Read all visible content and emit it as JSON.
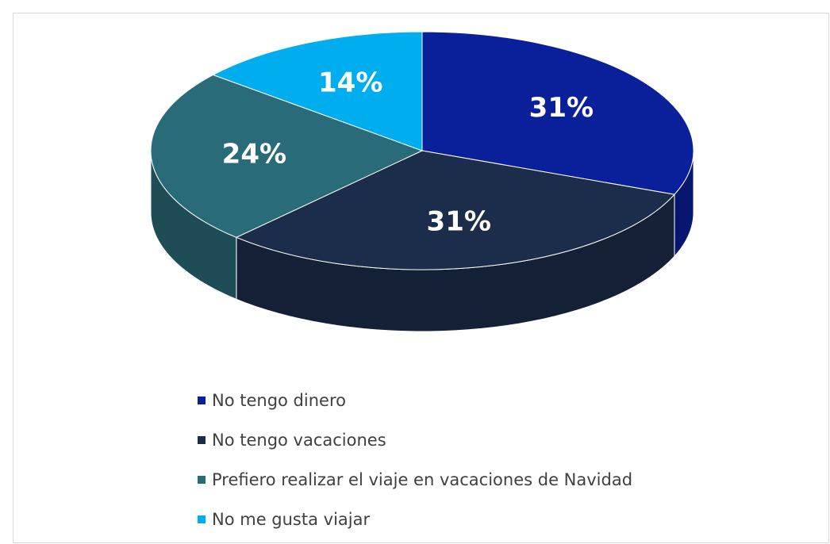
{
  "chart_data": {
    "type": "pie3d",
    "categories": [
      "No tengo dinero",
      "No tengo vacaciones",
      "Prefiero realizar el viaje en vacaciones de Navidad",
      "No me gusta viajar"
    ],
    "values": [
      31,
      31,
      24,
      14
    ],
    "value_labels": [
      "31%",
      "31%",
      "24%",
      "14%"
    ],
    "colors": [
      "#0a1f9a",
      "#1c2d4b",
      "#2a6b79",
      "#00aeef"
    ],
    "legend": "bottom"
  }
}
